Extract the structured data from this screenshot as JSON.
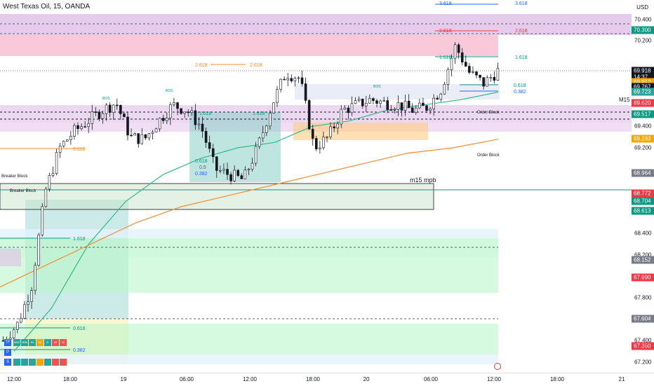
{
  "header": {
    "title": "West Texas Oil, 15, OANDA",
    "currency": "USD"
  },
  "price_axis": {
    "ticks": [
      "70.400",
      "70.200",
      "69.400",
      "69.200",
      "68.400",
      "68.200",
      "67.800",
      "67.600",
      "67.400",
      "67.200"
    ],
    "tags": [
      {
        "text": "70.300",
        "color": "#089981"
      },
      {
        "text": "69.918",
        "color": "#131722"
      },
      {
        "text": "14:37",
        "color": "#131722"
      },
      {
        "text": "69.812",
        "color": "#f7a600"
      },
      {
        "text": "69.767",
        "color": "#131722"
      },
      {
        "text": "69.723",
        "color": "#26a69a"
      },
      {
        "text": "69.620",
        "color": "#f23645"
      },
      {
        "text": "69.517",
        "color": "#089981"
      },
      {
        "text": "69.283",
        "color": "#f7a600"
      },
      {
        "text": "68.964",
        "color": "#787b86"
      },
      {
        "text": "68.772",
        "color": "#f23645"
      },
      {
        "text": "68.704",
        "color": "#089981"
      },
      {
        "text": "68.613",
        "color": "#089981"
      },
      {
        "text": "68.152",
        "color": "#787b86"
      },
      {
        "text": "67.990",
        "color": "#f23645"
      },
      {
        "text": "67.604",
        "color": "#787b86"
      },
      {
        "text": "67.350",
        "color": "#f23645"
      }
    ]
  },
  "time_axis": {
    "labels": [
      "12:00",
      "18:00",
      "19",
      "06:00",
      "12:00",
      "18:00",
      "20",
      "06:00",
      "12:00",
      "18:00",
      "21"
    ]
  },
  "annotations": {
    "m15": "M15",
    "mpb": "m15 mpb",
    "breaker_block": "Breaker Block",
    "order_block": "Order Block",
    "bos": "BOS",
    "fibs": [
      "3.618",
      "2.618",
      "1.618",
      "0.618",
      "0.5",
      "0.382"
    ]
  },
  "bias_table": {
    "rows": [
      {
        "label": "TF",
        "cells": [
          "M15",
          "M30",
          "H1",
          "H4",
          "D",
          "W",
          "M"
        ]
      },
      {
        "label": "P",
        "cells": [
          "",
          "",
          "",
          "",
          "",
          "",
          ""
        ]
      },
      {
        "label": "S",
        "cells": [
          "",
          "",
          "",
          "",
          "",
          "",
          ""
        ]
      }
    ],
    "colors": [
      "#26a69a",
      "#26a69a",
      "#26a69a",
      "#f7a600",
      "#26a69a",
      "#ef5350",
      "#ef5350"
    ]
  },
  "chart_data": {
    "type": "candlestick",
    "title": "West Texas Oil, 15, OANDA",
    "ylabel": "USD",
    "ylim": [
      67.1,
      70.58
    ],
    "x": [
      "12:00",
      "18:00",
      "19",
      "06:00",
      "12:00",
      "18:00",
      "20",
      "06:00",
      "12:00"
    ],
    "close_path": [
      67.4,
      67.55,
      67.9,
      68.8,
      69.2,
      69.35,
      69.45,
      69.55,
      69.62,
      69.3,
      69.28,
      69.45,
      69.6,
      69.55,
      69.4,
      69.0,
      68.95,
      68.9,
      69.2,
      69.6,
      69.9,
      69.85,
      69.2,
      69.3,
      69.55,
      69.6,
      69.65,
      69.62,
      69.6,
      69.55,
      69.58,
      69.75,
      70.15,
      69.9,
      69.8,
      69.918
    ],
    "moving_averages": [
      {
        "color": "#2ebd85",
        "values": [
          67.3,
          67.7,
          68.3,
          68.7,
          68.95,
          69.1,
          69.2,
          69.25,
          69.4,
          69.45,
          69.55,
          69.6,
          69.65,
          69.72
        ]
      },
      {
        "color": "#f48c32",
        "values": [
          67.9,
          68.1,
          68.3,
          68.5,
          68.65,
          68.75,
          68.85,
          68.95,
          69.05,
          69.15,
          69.2,
          69.28
        ]
      }
    ],
    "last_price": 69.918
  }
}
